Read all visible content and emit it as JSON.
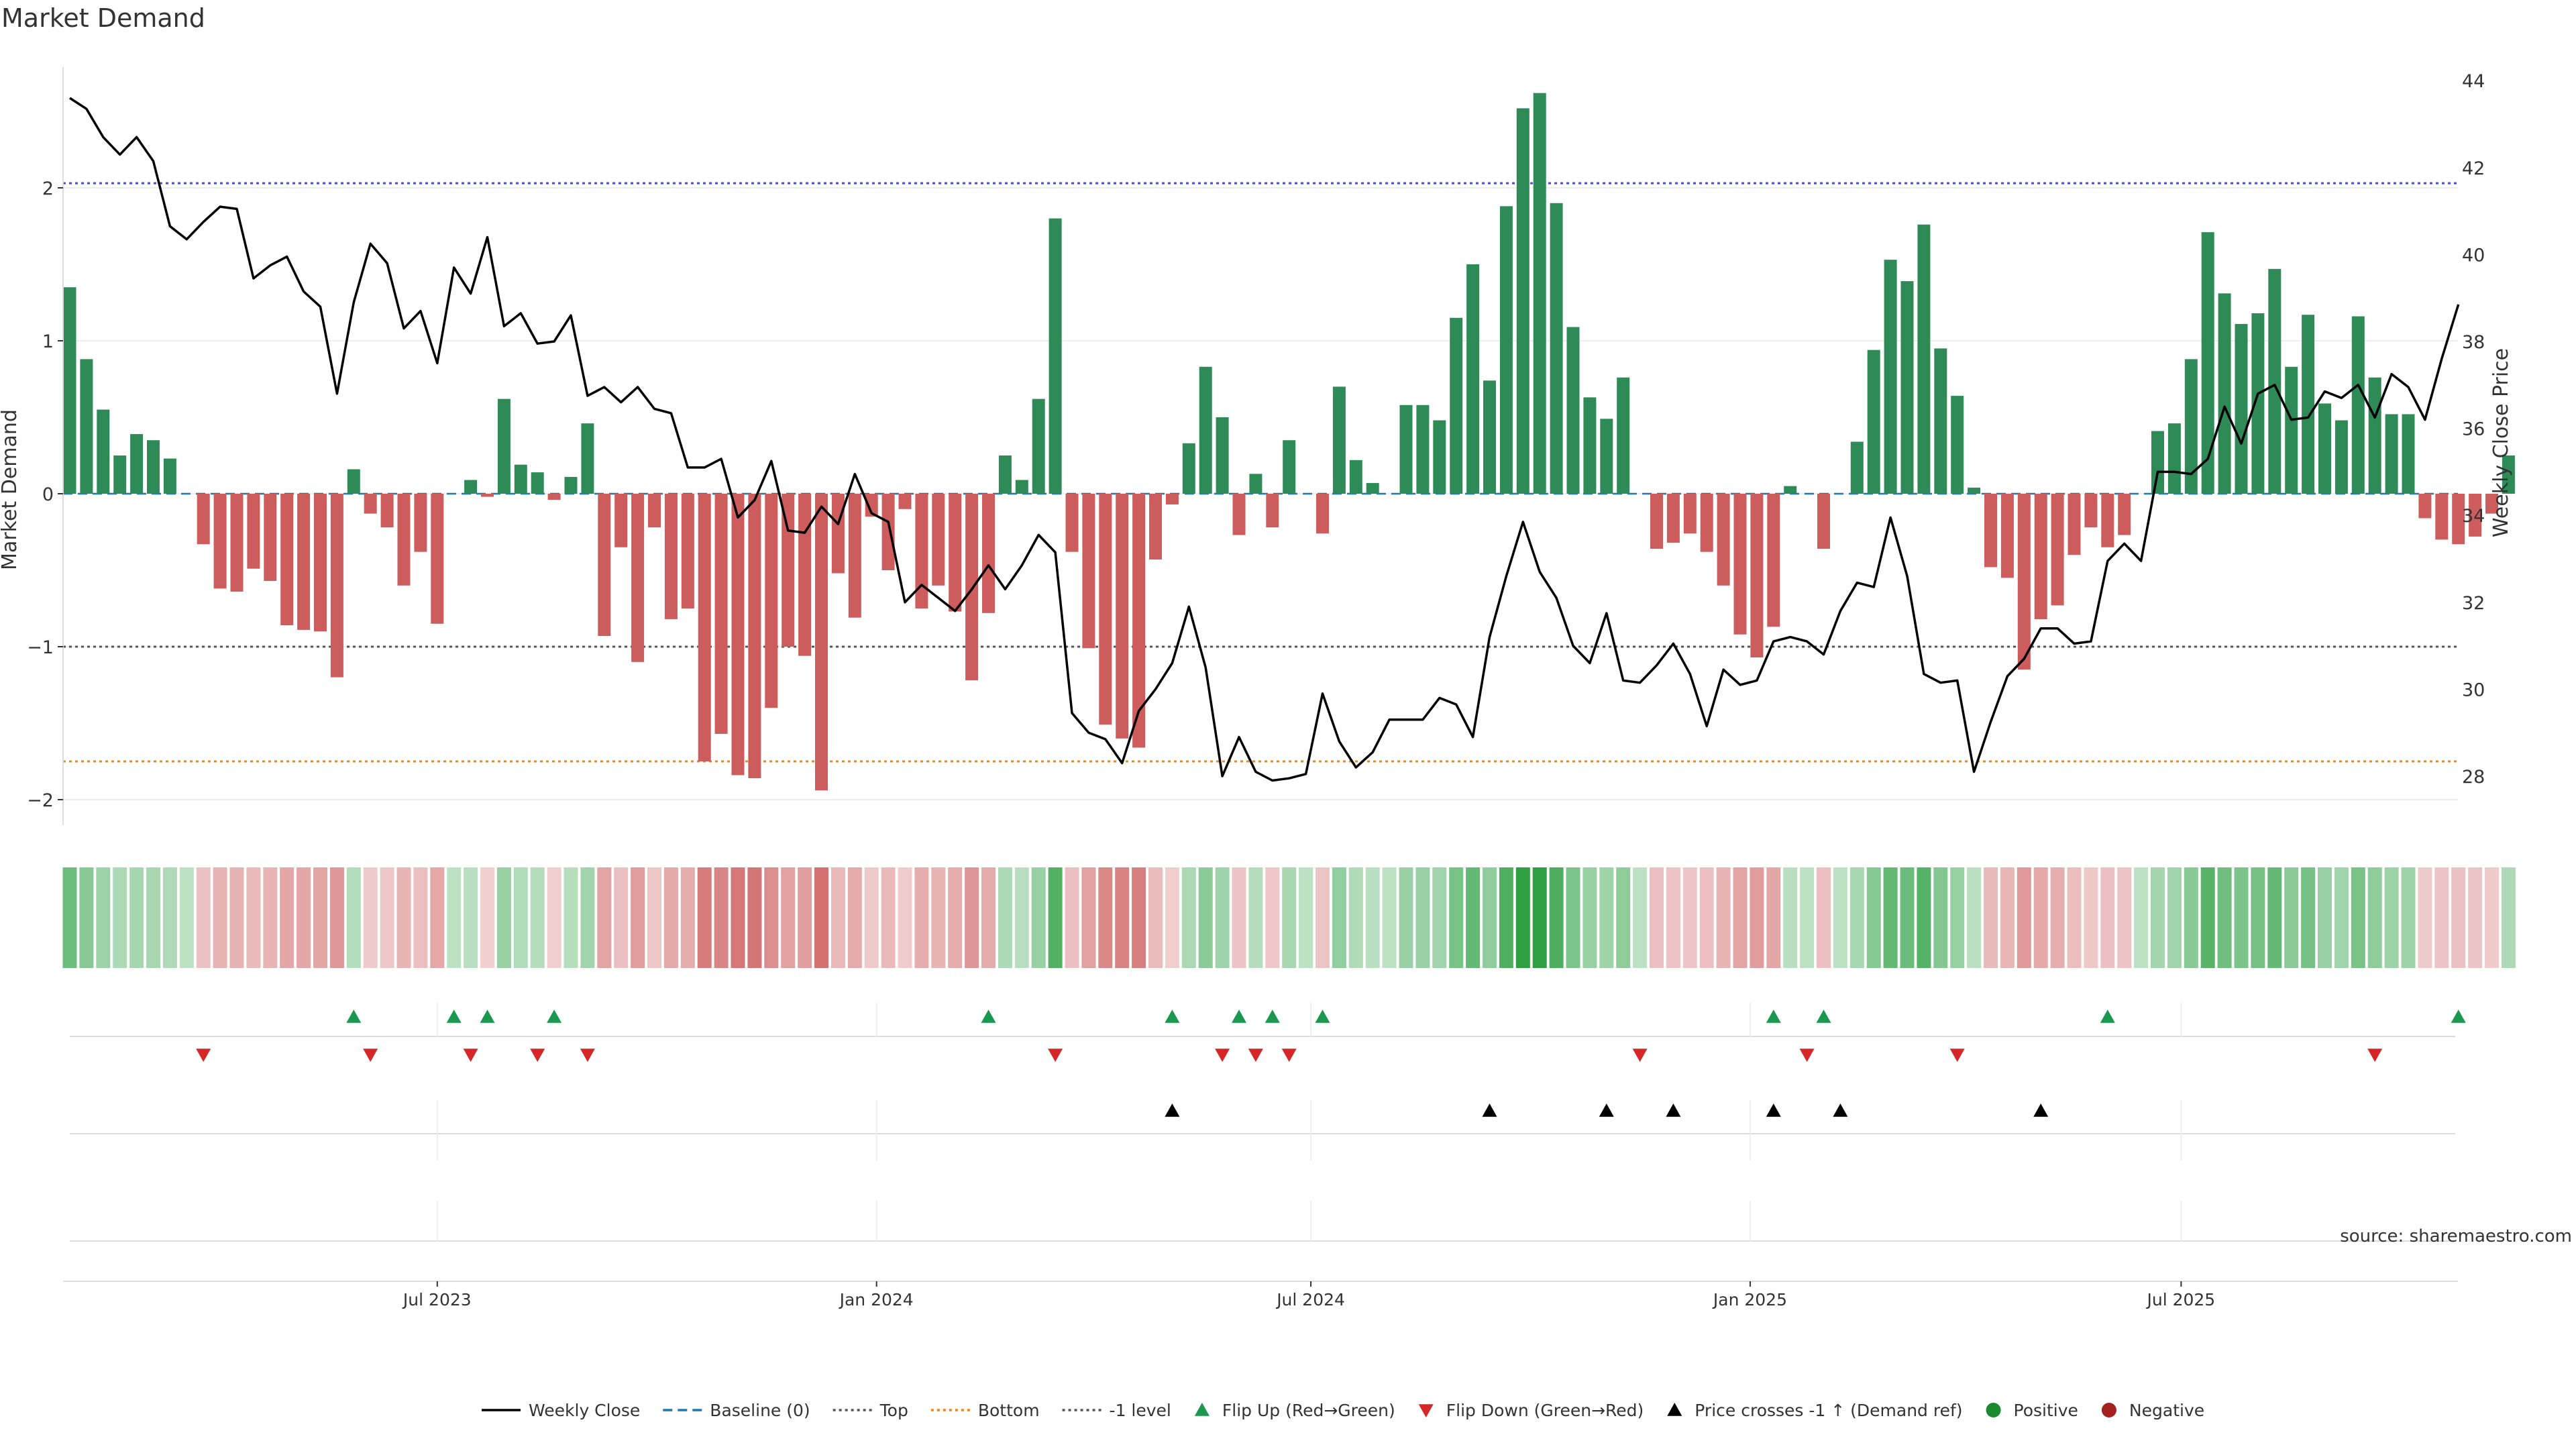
{
  "chart_data": {
    "type": "bar",
    "title": "Market Demand",
    "ylabel": "Market Demand",
    "y2label": "Weekly Close Price",
    "ylim": [
      -2.2,
      2.65
    ],
    "y2lim": [
      27.0,
      44.6
    ],
    "yticks": [
      -2,
      -1,
      0,
      1,
      2
    ],
    "y2ticks": [
      28,
      30,
      32,
      34,
      36,
      38,
      40,
      42,
      44
    ],
    "ytick_labels": [
      "−2",
      "−1",
      "0",
      "1",
      "2"
    ],
    "y2tick_labels": [
      "28",
      "30",
      "32",
      "34",
      "36",
      "38",
      "40",
      "42",
      "44"
    ],
    "reference_lines": {
      "baseline": 0,
      "top": 2.03,
      "bottom": -1.75,
      "minus_one": -1
    },
    "x_labels": [
      {
        "label": "Jul 2023",
        "week": 22
      },
      {
        "label": "Jan 2024",
        "week": 48.3
      },
      {
        "label": "Jul 2024",
        "week": 74.3
      },
      {
        "label": "Jan 2025",
        "week": 100.6
      },
      {
        "label": "Jul 2025",
        "week": 126.4
      }
    ],
    "weeks": 145,
    "market_demand": [
      1.35,
      0.88,
      0.55,
      0.25,
      0.39,
      0.35,
      0.23,
      0.0,
      -0.33,
      -0.62,
      -0.64,
      -0.49,
      -0.57,
      -0.86,
      -0.89,
      -0.9,
      -1.2,
      0.16,
      -0.13,
      -0.22,
      -0.6,
      -0.38,
      -0.85,
      0.0,
      0.09,
      -0.02,
      0.62,
      0.19,
      0.14,
      -0.04,
      0.11,
      0.46,
      -0.93,
      -0.35,
      -1.1,
      -0.22,
      -0.82,
      -0.75,
      -1.75,
      -1.57,
      -1.84,
      -1.86,
      -1.4,
      -1.0,
      -1.06,
      -1.94,
      -0.52,
      -0.81,
      -0.15,
      -0.5,
      -0.1,
      -0.75,
      -0.6,
      -0.77,
      -1.22,
      -0.78,
      0.25,
      0.09,
      0.62,
      1.8,
      -0.38,
      -1.01,
      -1.51,
      -1.6,
      -1.66,
      -0.43,
      -0.07,
      0.33,
      0.83,
      0.5,
      -0.27,
      0.13,
      -0.22,
      0.35,
      0.0,
      -0.26,
      0.7,
      0.22,
      0.07,
      0.0,
      0.58,
      0.58,
      0.48,
      1.15,
      1.5,
      0.74,
      1.88,
      2.52,
      2.62,
      1.9,
      1.09,
      0.63,
      0.49,
      0.76,
      0.0,
      -0.36,
      -0.32,
      -0.26,
      -0.38,
      -0.6,
      -0.92,
      -1.07,
      -0.87,
      0.05,
      0.0,
      -0.36,
      0.0,
      0.34,
      0.94,
      1.53,
      1.39,
      1.76,
      0.95,
      0.64,
      0.04,
      -0.48,
      -0.55,
      -1.15,
      -0.82,
      -0.73,
      -0.4,
      -0.22,
      -0.35,
      -0.27,
      0.0,
      0.41,
      0.46,
      0.88,
      1.71,
      1.31,
      1.11,
      1.18,
      1.47,
      0.83,
      1.17,
      0.59,
      0.48,
      1.16,
      0.76,
      0.52,
      0.52,
      -0.16,
      -0.3,
      -0.33,
      -0.28,
      -0.13,
      0.25
    ],
    "weekly_close": [
      43.6,
      43.35,
      42.7,
      42.3,
      42.7,
      42.15,
      40.65,
      40.35,
      40.75,
      41.1,
      41.05,
      39.45,
      39.75,
      39.95,
      39.15,
      38.8,
      36.8,
      38.9,
      40.25,
      39.8,
      38.3,
      38.7,
      37.5,
      39.7,
      39.1,
      40.4,
      38.35,
      38.65,
      37.95,
      38.0,
      38.6,
      36.75,
      36.95,
      36.6,
      36.95,
      36.45,
      36.35,
      35.1,
      35.1,
      35.3,
      33.95,
      34.35,
      35.25,
      33.65,
      33.6,
      34.2,
      33.8,
      34.95,
      34.05,
      33.85,
      32.0,
      32.4,
      32.1,
      31.8,
      32.3,
      32.85,
      32.3,
      32.85,
      33.55,
      33.15,
      29.45,
      29.0,
      28.85,
      28.3,
      29.5,
      30.0,
      30.6,
      31.9,
      30.5,
      28.0,
      28.9,
      28.1,
      27.9,
      27.95,
      28.05,
      29.9,
      28.8,
      28.2,
      28.55,
      29.3,
      29.3,
      29.3,
      29.8,
      29.65,
      28.9,
      31.2,
      32.6,
      33.85,
      32.7,
      32.1,
      31.0,
      30.6,
      31.75,
      30.2,
      30.15,
      30.55,
      31.05,
      30.35,
      29.15,
      30.45,
      30.1,
      30.2,
      31.1,
      31.2,
      31.1,
      30.8,
      31.8,
      32.45,
      32.35,
      33.95,
      32.6,
      30.35,
      30.15,
      30.2,
      28.1,
      29.25,
      30.3,
      30.7,
      31.4,
      31.4,
      31.05,
      31.1,
      32.95,
      33.35,
      32.95,
      35.0,
      35.0,
      34.95,
      35.3,
      36.5,
      35.65,
      36.8,
      37.0,
      36.2,
      36.25,
      36.85,
      36.7,
      37.0,
      36.25,
      37.25,
      36.95,
      36.2,
      37.6,
      38.85
    ]
  },
  "markers": {
    "flip_up_weeks": [
      17,
      23,
      25,
      29,
      55,
      66,
      70,
      72,
      75,
      102,
      105,
      122,
      143
    ],
    "flip_down_weeks": [
      8,
      18,
      24,
      28,
      31,
      59,
      69,
      71,
      73,
      94,
      104,
      113,
      138
    ],
    "price_cross_weeks": [
      66,
      85,
      92,
      96,
      102,
      106,
      118
    ]
  },
  "legend": [
    {
      "label": "Weekly Close",
      "kind": "line",
      "color": "#000000"
    },
    {
      "label": "Baseline (0)",
      "kind": "dash",
      "color": "#1f77b4"
    },
    {
      "label": "Top",
      "kind": "dot",
      "color": "#555555"
    },
    {
      "label": "Bottom",
      "kind": "dot",
      "color": "#ff7f0e"
    },
    {
      "label": "-1 level",
      "kind": "dot",
      "color": "#555555"
    },
    {
      "label": "Flip Up (Red→Green)",
      "kind": "tri-up",
      "color": "#1a9850"
    },
    {
      "label": "Flip Down (Green→Red)",
      "kind": "tri-down",
      "color": "#d62728"
    },
    {
      "label": "Price crosses -1 ↑ (Demand ref)",
      "kind": "tri-up",
      "color": "#000000"
    },
    {
      "label": "Positive",
      "kind": "dot-marker",
      "color": "#1b8a2e"
    },
    {
      "label": "Negative",
      "kind": "dot-marker",
      "color": "#a3201e"
    }
  ],
  "source": "source: sharemaestro.com",
  "colors": {
    "positive_bar": "#2e8b57",
    "negative_bar": "#cd5c5c",
    "top_line": "#4b4bcf",
    "bottom_line": "#e08a2b",
    "minus_one_line": "#555555",
    "baseline": "#1f77b4",
    "grid": "#eeeeee"
  }
}
